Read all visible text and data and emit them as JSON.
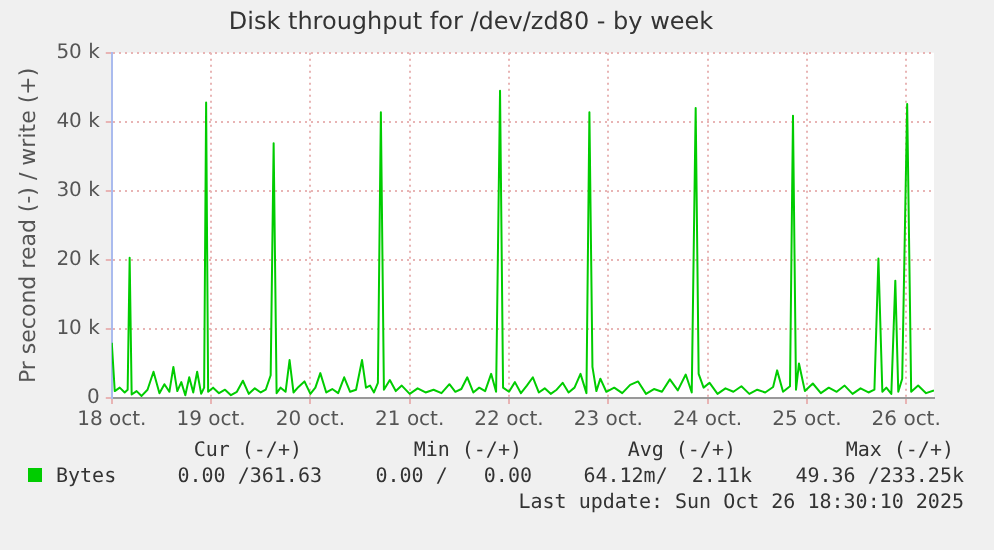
{
  "chart_data": {
    "type": "line",
    "title": "Disk throughput for /dev/zd80 - by week",
    "ylabel": "Pr second read (-) / write (+)",
    "x": [
      "2025-10-18T12:00",
      "2025-10-18T12:43",
      "2025-10-18T13:55",
      "2025-10-18T15:07",
      "2025-10-18T15:50",
      "2025-10-18T16:19",
      "2025-10-18T16:48",
      "2025-10-18T18:00",
      "2025-10-18T19:12",
      "2025-10-18T20:38",
      "2025-10-18T22:05",
      "2025-10-18T23:31",
      "2025-10-19T00:43",
      "2025-10-19T01:55",
      "2025-10-19T02:53",
      "2025-10-19T03:50",
      "2025-10-19T04:48",
      "2025-10-19T05:46",
      "2025-10-19T06:43",
      "2025-10-19T07:41",
      "2025-10-19T08:38",
      "2025-10-19T09:36",
      "2025-10-19T10:19",
      "2025-10-19T10:48",
      "2025-10-19T11:17",
      "2025-10-19T12:29",
      "2025-10-19T13:55",
      "2025-10-19T15:22",
      "2025-10-19T16:48",
      "2025-10-19T18:14",
      "2025-10-19T19:41",
      "2025-10-19T21:07",
      "2025-10-19T22:34",
      "2025-10-20T00:00",
      "2025-10-20T01:12",
      "2025-10-20T02:24",
      "2025-10-20T03:07",
      "2025-10-20T03:50",
      "2025-10-20T04:48",
      "2025-10-20T06:00",
      "2025-10-20T06:58",
      "2025-10-20T07:55",
      "2025-10-20T09:07",
      "2025-10-20T10:34",
      "2025-10-20T12:00",
      "2025-10-20T13:12",
      "2025-10-20T14:24",
      "2025-10-20T15:50",
      "2025-10-20T17:17",
      "2025-10-20T18:43",
      "2025-10-20T20:10",
      "2025-10-20T21:36",
      "2025-10-20T23:02",
      "2025-10-21T00:29",
      "2025-10-21T01:26",
      "2025-10-21T02:24",
      "2025-10-21T03:22",
      "2025-10-21T04:19",
      "2025-10-21T05:02",
      "2025-10-21T05:46",
      "2025-10-21T07:12",
      "2025-10-21T08:38",
      "2025-10-21T10:05",
      "2025-10-21T12:00",
      "2025-10-21T13:55",
      "2025-10-21T15:50",
      "2025-10-21T17:46",
      "2025-10-21T19:41",
      "2025-10-21T21:36",
      "2025-10-21T23:02",
      "2025-10-22T00:29",
      "2025-10-22T01:55",
      "2025-10-22T03:22",
      "2025-10-22T04:48",
      "2025-10-22T06:14",
      "2025-10-22T07:41",
      "2025-10-22T08:53",
      "2025-10-22T09:50",
      "2025-10-22T10:34",
      "2025-10-22T12:00",
      "2025-10-22T13:26",
      "2025-10-22T14:53",
      "2025-10-22T16:19",
      "2025-10-22T17:46",
      "2025-10-22T19:12",
      "2025-10-22T20:38",
      "2025-10-22T22:05",
      "2025-10-22T23:31",
      "2025-10-23T00:58",
      "2025-10-23T02:24",
      "2025-10-23T03:50",
      "2025-10-23T05:17",
      "2025-10-23T06:43",
      "2025-10-23T07:26",
      "2025-10-23T08:10",
      "2025-10-23T09:07",
      "2025-10-23T10:05",
      "2025-10-23T11:31",
      "2025-10-23T13:26",
      "2025-10-23T15:22",
      "2025-10-23T17:17",
      "2025-10-23T19:12",
      "2025-10-23T21:07",
      "2025-10-23T23:02",
      "2025-10-24T00:58",
      "2025-10-24T02:53",
      "2025-10-24T04:48",
      "2025-10-24T06:43",
      "2025-10-24T08:10",
      "2025-10-24T09:07",
      "2025-10-24T09:50",
      "2025-10-24T11:02",
      "2025-10-24T12:29",
      "2025-10-24T14:24",
      "2025-10-24T16:19",
      "2025-10-24T18:14",
      "2025-10-24T20:10",
      "2025-10-24T22:05",
      "2025-10-25T00:00",
      "2025-10-25T01:55",
      "2025-10-25T03:50",
      "2025-10-25T04:48",
      "2025-10-25T06:14",
      "2025-10-25T07:55",
      "2025-10-25T08:38",
      "2025-10-25T09:22",
      "2025-10-25T10:05",
      "2025-10-25T11:31",
      "2025-10-25T13:26",
      "2025-10-25T15:22",
      "2025-10-25T17:17",
      "2025-10-25T19:12",
      "2025-10-25T21:07",
      "2025-10-25T23:02",
      "2025-10-26T00:58",
      "2025-10-26T02:53",
      "2025-10-26T04:19",
      "2025-10-26T05:17",
      "2025-10-26T06:14",
      "2025-10-26T07:12",
      "2025-10-26T08:24",
      "2025-10-26T09:22",
      "2025-10-26T10:05",
      "2025-10-26T11:02",
      "2025-10-26T12:14",
      "2025-10-26T13:12",
      "2025-10-26T14:53",
      "2025-10-26T16:48",
      "2025-10-26T18:43"
    ],
    "series": [
      {
        "name": "Bytes",
        "color": "#00cc00",
        "values": [
          8000,
          1000,
          1500,
          800,
          1200,
          20300,
          500,
          1000,
          300,
          1200,
          3800,
          700,
          2000,
          900,
          4500,
          1000,
          2300,
          400,
          3000,
          800,
          3800,
          600,
          1500,
          42800,
          900,
          1500,
          700,
          1200,
          400,
          900,
          2500,
          600,
          1400,
          800,
          1200,
          3300,
          36900,
          700,
          1500,
          900,
          5500,
          800,
          1600,
          2400,
          600,
          1500,
          3600,
          800,
          1300,
          700,
          3000,
          900,
          1200,
          5500,
          1500,
          1800,
          800,
          2200,
          41400,
          1200,
          2600,
          1000,
          1800,
          600,
          1400,
          800,
          1200,
          700,
          2000,
          900,
          1300,
          3000,
          800,
          1500,
          1000,
          3500,
          900,
          44500,
          1500,
          900,
          2300,
          700,
          1800,
          3000,
          800,
          1400,
          600,
          1200,
          2200,
          800,
          1500,
          3500,
          700,
          41400,
          4500,
          1000,
          2800,
          900,
          1500,
          700,
          1900,
          2400,
          600,
          1300,
          900,
          2700,
          1100,
          3400,
          800,
          42000,
          3500,
          1500,
          2200,
          600,
          1400,
          900,
          1700,
          600,
          1200,
          800,
          1600,
          4000,
          900,
          1700,
          40900,
          1200,
          5000,
          1000,
          2100,
          700,
          1500,
          900,
          1800,
          600,
          1400,
          800,
          1200,
          20200,
          900,
          1500,
          600,
          17000,
          900,
          2800,
          42600,
          900,
          1800,
          700,
          1100
        ]
      }
    ],
    "xlim": [
      "2025-10-18T12:00",
      "2025-10-26T18:43"
    ],
    "xticks": [
      {
        "value": "2025-10-18T12:00",
        "label": "18 oct."
      },
      {
        "value": "2025-10-19T12:00",
        "label": "19 oct."
      },
      {
        "value": "2025-10-20T12:00",
        "label": "20 oct."
      },
      {
        "value": "2025-10-21T12:00",
        "label": "21 oct."
      },
      {
        "value": "2025-10-22T12:00",
        "label": "22 oct."
      },
      {
        "value": "2025-10-23T12:00",
        "label": "23 oct."
      },
      {
        "value": "2025-10-24T12:00",
        "label": "24 oct."
      },
      {
        "value": "2025-10-25T12:00",
        "label": "25 oct."
      },
      {
        "value": "2025-10-26T12:00",
        "label": "26 oct."
      }
    ],
    "ylim": [
      0,
      50000
    ],
    "yticks": [
      {
        "value": 0,
        "label": "0"
      },
      {
        "value": 10000,
        "label": "10 k"
      },
      {
        "value": 20000,
        "label": "20 k"
      },
      {
        "value": 30000,
        "label": "30 k"
      },
      {
        "value": 40000,
        "label": "40 k"
      },
      {
        "value": 50000,
        "label": "50 k"
      }
    ],
    "grid": true,
    "marker": "none",
    "line_style": "solid",
    "legend": "bottom",
    "annotations": [
      "Cur (-/+)",
      "Min (-/+)",
      "Avg (-/+)",
      "Max (-/+)",
      "0.00 /361.63",
      "0.00 /   0.00",
      "64.12m/  2.11k",
      "49.36 /233.25k",
      "Last update: Sun Oct 26 18:30:10 2025"
    ]
  }
}
